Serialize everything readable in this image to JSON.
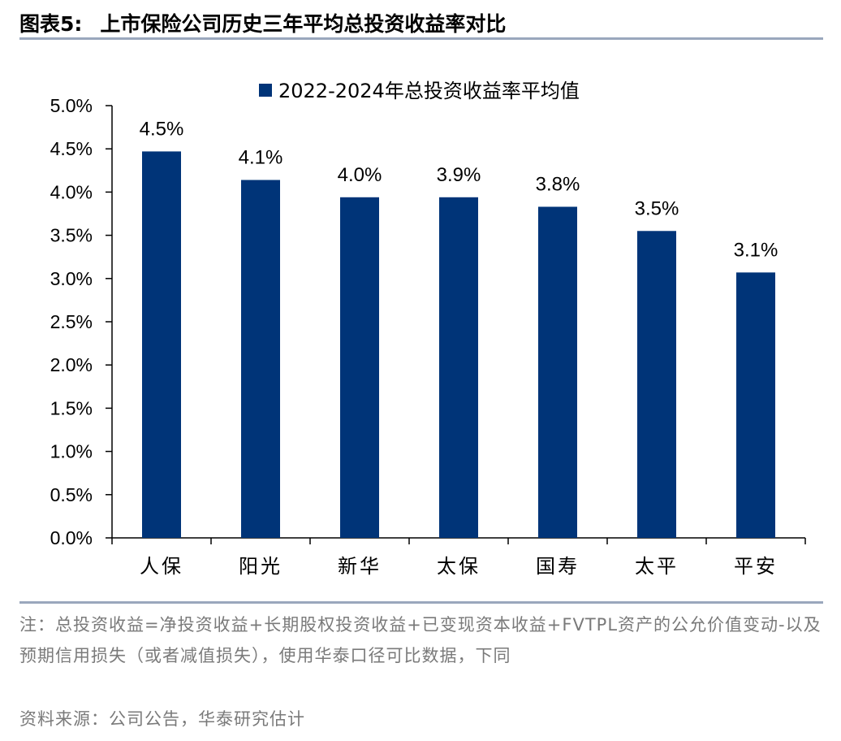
{
  "figure": {
    "label": "图表5:",
    "title": "上市保险公司历史三年平均总投资收益率对比"
  },
  "note": "注：总投资收益=净投资收益+长期股权投资收益+已变现资本收益+FVTPL资产的公允价值变动-以及预期信用损失（或者减值损失），使用华泰口径可比数据，下同",
  "source": "资料来源：公司公告，华泰研究估计",
  "colors": {
    "bar": "#003478",
    "rule": "#9aa7bd",
    "note_text": "#7a7a7a"
  },
  "chart_data": {
    "type": "bar",
    "categories": [
      "人保",
      "阳光",
      "新华",
      "太保",
      "国寿",
      "太平",
      "平安"
    ],
    "series": [
      {
        "name": "2022-2024年总投资收益率平均值",
        "values": [
          4.5,
          4.1,
          4.0,
          3.9,
          3.8,
          3.5,
          3.1
        ],
        "labels": [
          "4.5%",
          "4.1%",
          "4.0%",
          "3.9%",
          "3.8%",
          "3.5%",
          "3.1%"
        ]
      }
    ],
    "bar_values_estimated": [
      4.47,
      4.14,
      3.94,
      3.94,
      3.83,
      3.55,
      3.07
    ],
    "ylim": [
      0,
      5.0
    ],
    "y_ticks": [
      0,
      0.5,
      1.0,
      1.5,
      2.0,
      2.5,
      3.0,
      3.5,
      4.0,
      4.5,
      5.0
    ],
    "y_tick_labels": [
      "0.0%",
      "0.5%",
      "1.0%",
      "1.5%",
      "2.0%",
      "2.5%",
      "3.0%",
      "3.5%",
      "4.0%",
      "4.5%",
      "5.0%"
    ],
    "legend_position": "top-center",
    "grid": false
  }
}
